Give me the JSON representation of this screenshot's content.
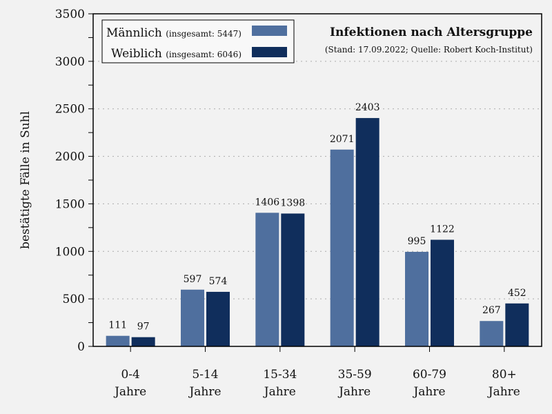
{
  "chart_data": {
    "type": "bar",
    "title": "Infektionen nach Altersgruppe",
    "subtitle": "(Stand: 17.09.2022; Quelle: Robert Koch-Institut)",
    "ylabel": "bestätigte Fälle in Suhl",
    "xlabel": "",
    "ylim": [
      0,
      3500
    ],
    "yticks": [
      0,
      500,
      1000,
      1500,
      2000,
      2500,
      3000,
      3500
    ],
    "grid": "horizontal dotted",
    "legend_position": "top-left",
    "categories": [
      [
        "0-4",
        "Jahre"
      ],
      [
        "5-14",
        "Jahre"
      ],
      [
        "15-34",
        "Jahre"
      ],
      [
        "35-59",
        "Jahre"
      ],
      [
        "60-79",
        "Jahre"
      ],
      [
        "80+",
        "Jahre"
      ]
    ],
    "series": [
      {
        "name": "Männlich",
        "legend_note": "(insgesamt: 5447)",
        "color": "#4f6f9e",
        "values": [
          111,
          597,
          1406,
          2071,
          995,
          267
        ]
      },
      {
        "name": "Weiblich",
        "legend_note": "(insgesamt: 6046)",
        "color": "#102e5c",
        "values": [
          97,
          574,
          1398,
          2403,
          1122,
          452
        ]
      }
    ]
  }
}
